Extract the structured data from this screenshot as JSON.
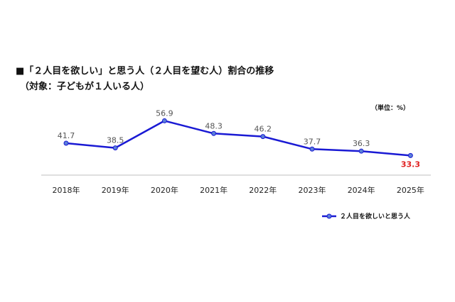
{
  "title": "■「２人目を欲しい」と思う人（２人目を望む人）割合の推移",
  "subtitle": "（対象：子どもが１人いる人）",
  "unit_label": "（単位：%）",
  "colors": {
    "line": "#1a1ad4",
    "marker": "#5a7fd8",
    "highlight": "#e02020",
    "axis": "#bfbfbf",
    "label": "#555555"
  },
  "chart_data": {
    "type": "line",
    "categories": [
      "2018年",
      "2019年",
      "2020年",
      "2021年",
      "2022年",
      "2023年",
      "2024年",
      "2025年"
    ],
    "series": [
      {
        "name": "２人目を欲しいと思う人",
        "values": [
          41.7,
          38.5,
          56.9,
          48.3,
          46.2,
          37.7,
          36.3,
          33.3
        ]
      }
    ],
    "data_labels": [
      "41.7",
      "38.5",
      "56.9",
      "48.3",
      "46.2",
      "37.7",
      "36.3",
      "33.3"
    ],
    "highlight_index": 7,
    "ylim": [
      20,
      60
    ],
    "grid": false,
    "legend": "bottom-right"
  }
}
